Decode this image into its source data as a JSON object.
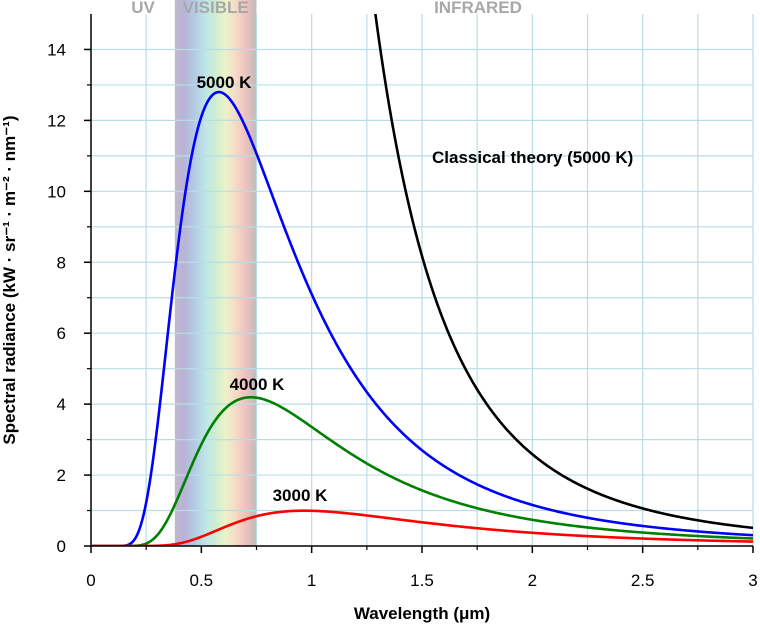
{
  "chart_data": {
    "type": "line",
    "xlabel": "Wavelength (μm)",
    "ylabel": "Spectral radiance (kW · sr⁻¹ · m⁻² · nm⁻¹)",
    "xlim": [
      0,
      3
    ],
    "ylim": [
      0,
      15
    ],
    "x_ticks": [
      "0",
      "0.5",
      "1",
      "1.5",
      "2",
      "2.5",
      "3"
    ],
    "x_tick_values": [
      0,
      0.5,
      1,
      1.5,
      2,
      2.5,
      3
    ],
    "y_ticks": [
      "0",
      "2",
      "4",
      "6",
      "8",
      "10",
      "12",
      "14"
    ],
    "y_tick_values": [
      0,
      2,
      4,
      6,
      8,
      10,
      12,
      14
    ],
    "grid": true,
    "bands": [
      {
        "label": "UV",
        "range": [
          0,
          0.38
        ]
      },
      {
        "label": "VISIBLE",
        "range": [
          0.38,
          0.75
        ]
      },
      {
        "label": "INFRARED",
        "range": [
          0.75,
          3
        ]
      }
    ],
    "series": [
      {
        "name": "5000 K",
        "color": "#0000ff",
        "kind": "planck",
        "temperature_K": 5000,
        "peak": {
          "x": 0.58,
          "y": 12.7
        }
      },
      {
        "name": "4000 K",
        "color": "#008000",
        "kind": "planck",
        "temperature_K": 4000,
        "peak": {
          "x": 0.72,
          "y": 4.15
        }
      },
      {
        "name": "3000 K",
        "color": "#ff0000",
        "kind": "planck",
        "temperature_K": 3000,
        "peak": {
          "x": 0.97,
          "y": 1.0
        }
      },
      {
        "name": "Classical theory (5000 K)",
        "color": "#000000",
        "kind": "rayleigh-jeans",
        "temperature_K": 5000
      }
    ]
  }
}
